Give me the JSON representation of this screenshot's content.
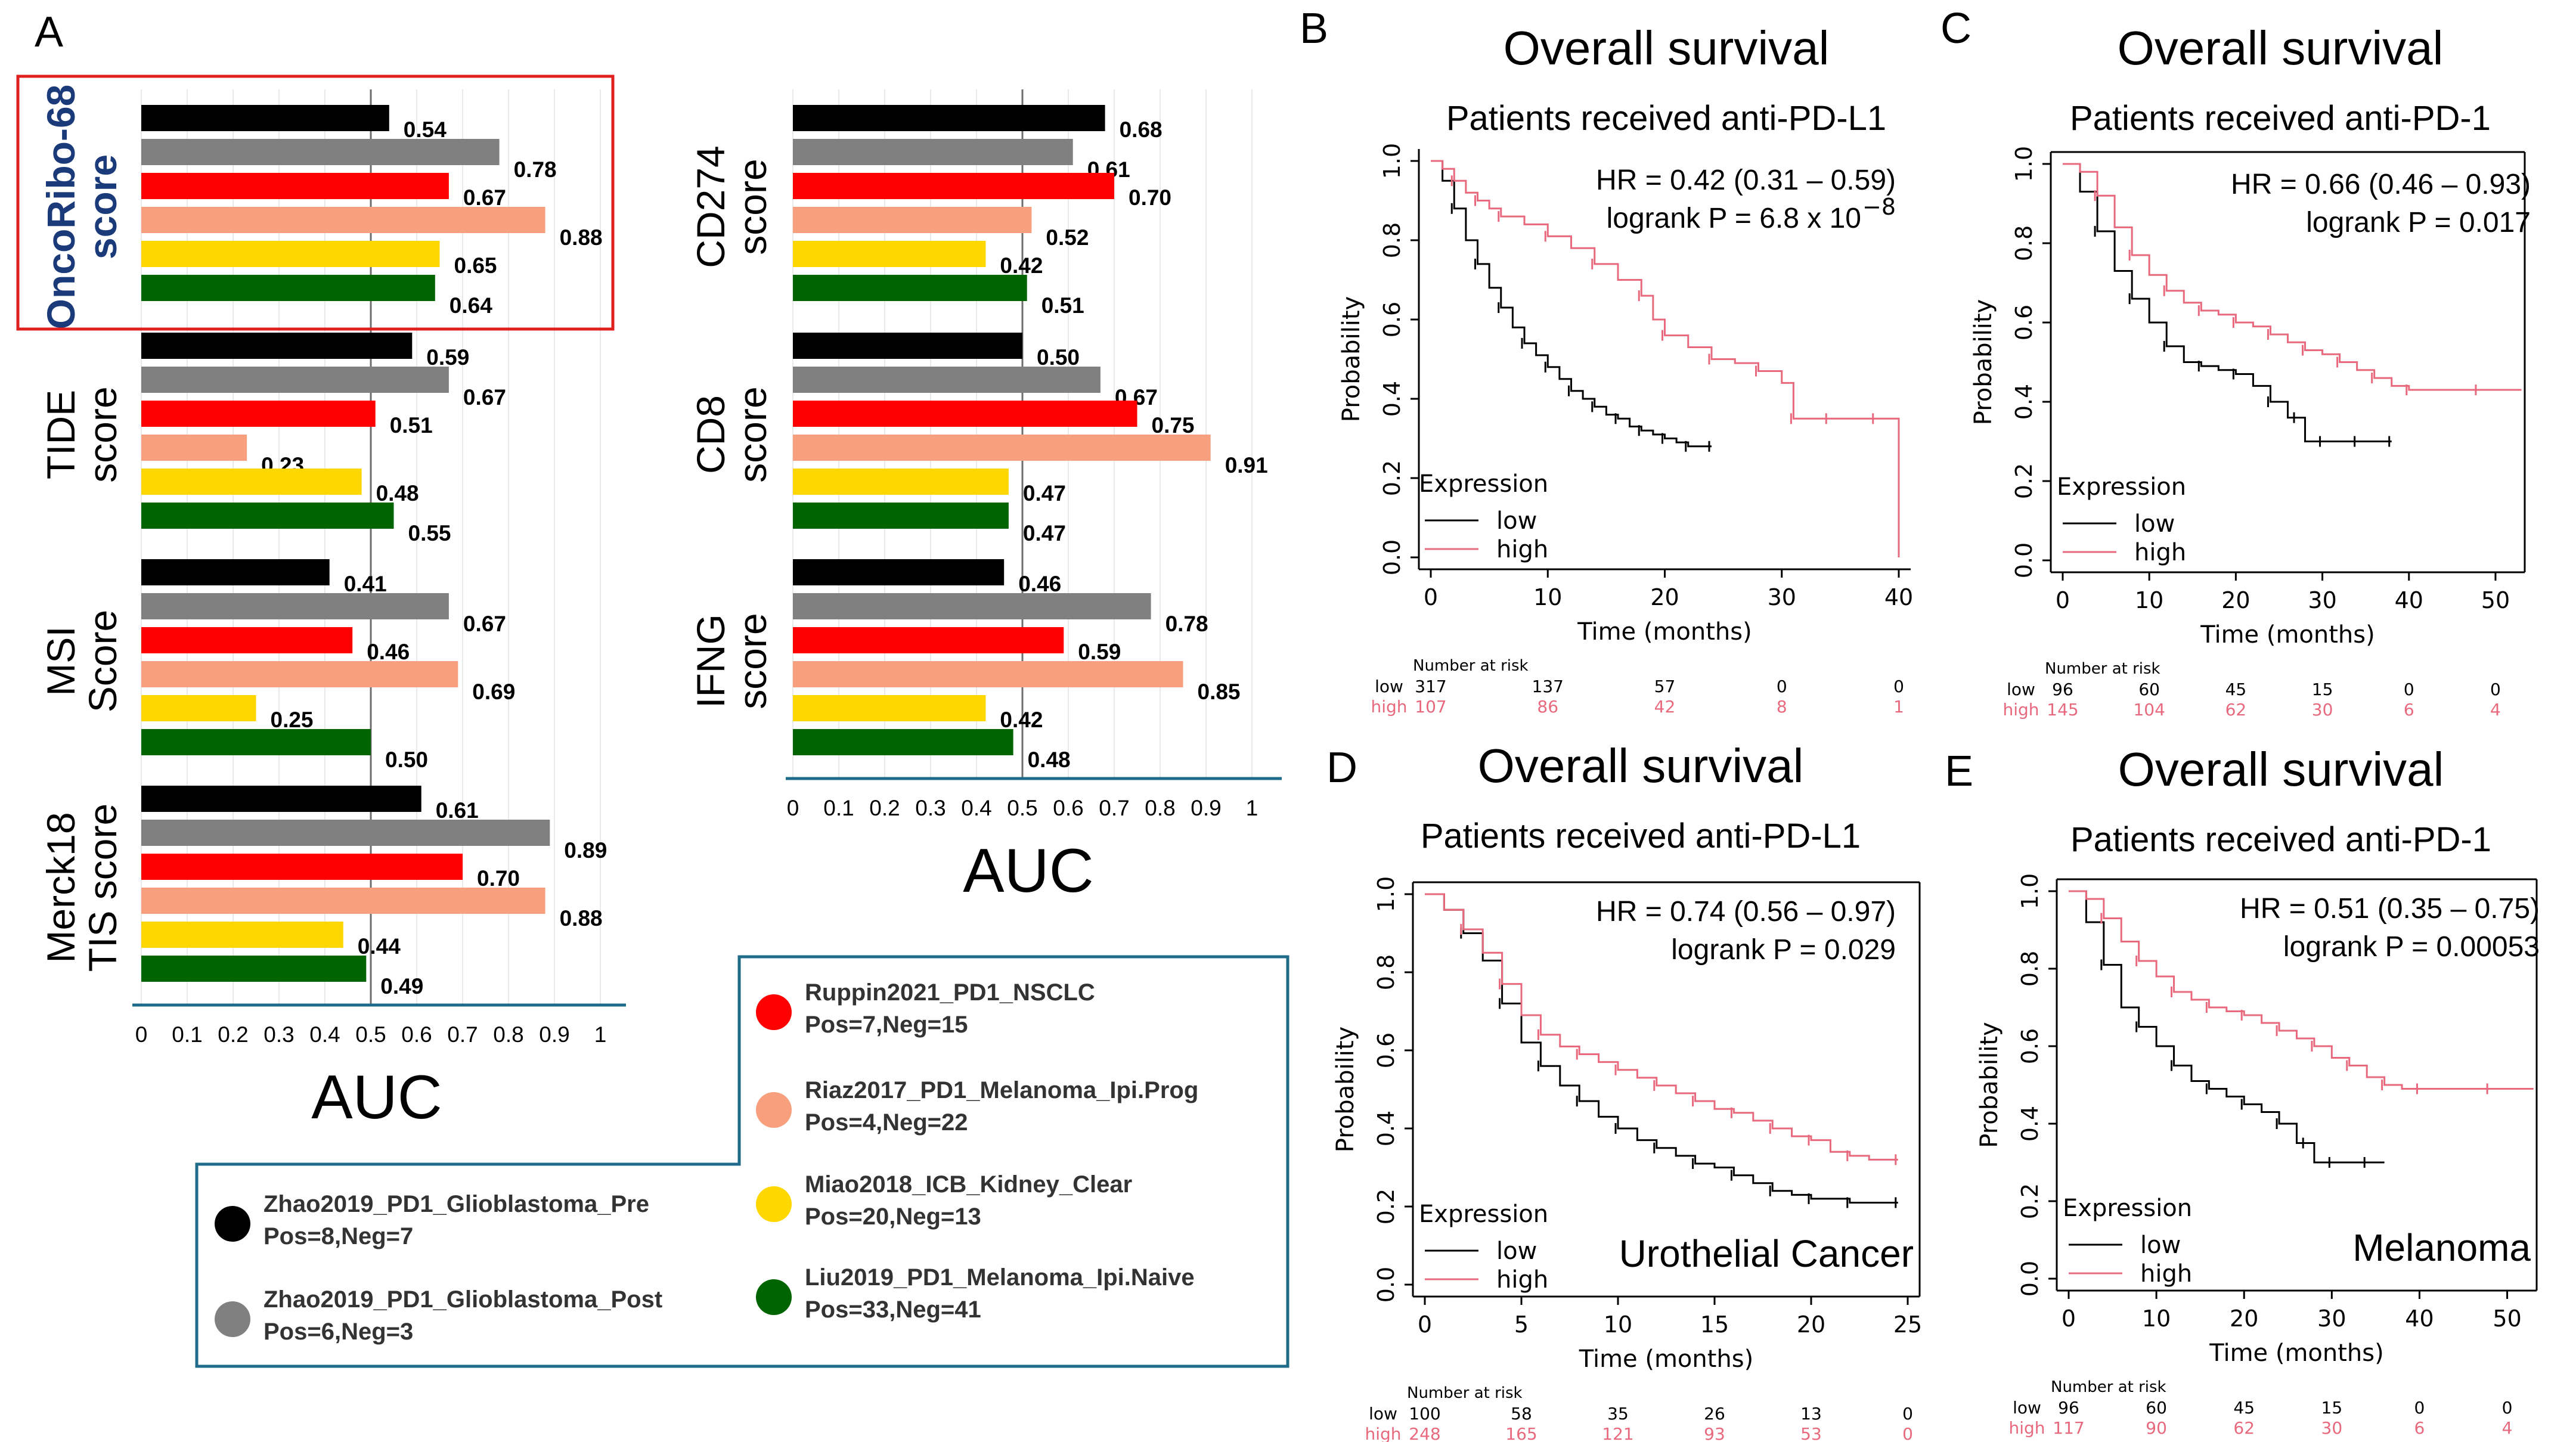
{
  "panel_a": {
    "letter": "A",
    "axis_title": "AUC",
    "x_ticks": [
      "0",
      "0.1",
      "0.2",
      "0.3",
      "0.4",
      "0.5",
      "0.6",
      "0.7",
      "0.8",
      "0.9",
      "1"
    ],
    "legend": [
      {
        "name": "Zhao2019_PD1_Glioblastoma_Pre",
        "counts": "Pos=8,Neg=7",
        "color": "#000000"
      },
      {
        "name": "Zhao2019_PD1_Glioblastoma_Post",
        "counts": "Pos=6,Neg=3",
        "color": "#808080"
      },
      {
        "name": "Ruppin2021_PD1_NSCLC",
        "counts": "Pos=7,Neg=15",
        "color": "#ff0000"
      },
      {
        "name": "Riaz2017_PD1_Melanoma_Ipi.Prog",
        "counts": "Pos=4,Neg=22",
        "color": "#f8a07e"
      },
      {
        "name": "Miao2018_ICB_Kidney_Clear",
        "counts": "Pos=20,Neg=13",
        "color": "#ffd700"
      },
      {
        "name": "Liu2019_PD1_Melanoma_Ipi.Naive",
        "counts": "Pos=33,Neg=41",
        "color": "#006400"
      }
    ],
    "highlight_color": "#e0201f",
    "highlight_label_color": "#1a3a7a"
  },
  "chart_data": [
    {
      "type": "bar",
      "orientation": "horizontal",
      "title": "",
      "xlabel": "AUC",
      "xlim": [
        0,
        1
      ],
      "reference_line": 0.5,
      "series_names": [
        "Zhao2019_PD1_Glioblastoma_Pre",
        "Zhao2019_PD1_Glioblastoma_Post",
        "Ruppin2021_PD1_NSCLC",
        "Riaz2017_PD1_Melanoma_Ipi.Prog",
        "Miao2018_ICB_Kidney_Clear",
        "Liu2019_PD1_Melanoma_Ipi.Naive"
      ],
      "groups": [
        {
          "label_lines": [
            "OncoRibo-68",
            "score"
          ],
          "values": [
            0.54,
            0.78,
            0.67,
            0.88,
            0.65,
            0.64
          ],
          "labels": [
            "0.54",
            "0.78",
            "0.67",
            "0.88",
            "0.65",
            "0.64"
          ],
          "highlight": true
        },
        {
          "label_lines": [
            "TIDE",
            "score"
          ],
          "values": [
            0.59,
            0.67,
            0.51,
            0.23,
            0.48,
            0.55
          ],
          "labels": [
            "0.59",
            "0.67",
            "0.51",
            "0.23",
            "0.48",
            "0.55"
          ]
        },
        {
          "label_lines": [
            "MSI",
            "Score"
          ],
          "values": [
            0.41,
            0.67,
            0.46,
            0.69,
            0.25,
            0.5
          ],
          "labels": [
            "0.41",
            "0.67",
            "0.46",
            "0.69",
            "0.25",
            "0.50"
          ]
        },
        {
          "label_lines": [
            "Merck18",
            "TIS score"
          ],
          "values": [
            0.61,
            0.89,
            0.7,
            0.88,
            0.44,
            0.49
          ],
          "labels": [
            "0.61",
            "0.89",
            "0.70",
            "0.88",
            "0.44",
            "0.49"
          ]
        }
      ]
    },
    {
      "type": "bar",
      "orientation": "horizontal",
      "title": "",
      "xlabel": "AUC",
      "xlim": [
        0,
        1
      ],
      "reference_line": 0.5,
      "series_names": [
        "Zhao2019_PD1_Glioblastoma_Pre",
        "Zhao2019_PD1_Glioblastoma_Post",
        "Ruppin2021_PD1_NSCLC",
        "Riaz2017_PD1_Melanoma_Ipi.Prog",
        "Miao2018_ICB_Kidney_Clear",
        "Liu2019_PD1_Melanoma_Ipi.Naive"
      ],
      "groups": [
        {
          "label_lines": [
            "CD274",
            "score"
          ],
          "values": [
            0.68,
            0.61,
            0.7,
            0.52,
            0.42,
            0.51
          ],
          "labels": [
            "0.68",
            "0.61",
            "0.70",
            "0.52",
            "0.42",
            "0.51"
          ]
        },
        {
          "label_lines": [
            "CD8",
            "score"
          ],
          "values": [
            0.5,
            0.67,
            0.75,
            0.91,
            0.47,
            0.47
          ],
          "labels": [
            "0.50",
            "0.67",
            "0.75",
            "0.91",
            "0.47",
            "0.47"
          ]
        },
        {
          "label_lines": [
            "IFNG",
            "score"
          ],
          "values": [
            0.46,
            0.78,
            0.59,
            0.85,
            0.42,
            0.48
          ],
          "labels": [
            "0.46",
            "0.78",
            "0.59",
            "0.85",
            "0.42",
            "0.48"
          ]
        }
      ]
    },
    {
      "type": "line",
      "subtype": "kaplan-meier",
      "letter": "B",
      "title": "Overall survival",
      "subtitle": "Patients received anti-PD-L1",
      "xlabel": "Time (months)",
      "ylabel": "Probability",
      "xlim": [
        0,
        40
      ],
      "ylim": [
        0,
        1
      ],
      "x_ticks": [
        "0",
        "10",
        "20",
        "30",
        "40"
      ],
      "y_ticks": [
        "0.0",
        "0.2",
        "0.4",
        "0.6",
        "0.8",
        "1.0"
      ],
      "hr_text": "HR = 0.42 (0.31 – 0.59)",
      "logrank_text": "logrank P = 6.8 x 10",
      "logrank_exp": "−8",
      "legend_title": "Expression",
      "legend_low": "low",
      "legend_high": "high",
      "cancer_label": "",
      "risk_title": "Number at risk",
      "risk_low_label": "low",
      "risk_high_label": "high",
      "risk_times": [
        0,
        10,
        20,
        30,
        40
      ],
      "risk_low": [
        "317",
        "137",
        "57",
        "0",
        "0"
      ],
      "risk_high": [
        "107",
        "86",
        "42",
        "8",
        "1"
      ],
      "series": [
        {
          "name": "low",
          "color": "#000000",
          "end": 24,
          "x": [
            0,
            1,
            2,
            3,
            4,
            5,
            6,
            7,
            8,
            9,
            10,
            11,
            12,
            13,
            14,
            15,
            16,
            17,
            18,
            19,
            20,
            21,
            22,
            23,
            24
          ],
          "y": [
            1.0,
            0.95,
            0.88,
            0.8,
            0.74,
            0.68,
            0.63,
            0.58,
            0.54,
            0.51,
            0.48,
            0.45,
            0.42,
            0.4,
            0.38,
            0.36,
            0.35,
            0.33,
            0.32,
            0.31,
            0.3,
            0.29,
            0.28,
            0.28,
            0.28
          ]
        },
        {
          "name": "high",
          "color": "#e8697d",
          "end": 40,
          "x": [
            0,
            1,
            2,
            3,
            4,
            5,
            6,
            8,
            10,
            12,
            14,
            16,
            18,
            19,
            20,
            22,
            24,
            26,
            28,
            30,
            31,
            32,
            34,
            36,
            38,
            40
          ],
          "y": [
            1.0,
            0.98,
            0.95,
            0.92,
            0.9,
            0.88,
            0.86,
            0.84,
            0.81,
            0.78,
            0.74,
            0.7,
            0.66,
            0.6,
            0.56,
            0.53,
            0.5,
            0.49,
            0.47,
            0.44,
            0.35,
            0.35,
            0.35,
            0.35,
            0.35,
            0.0
          ]
        }
      ]
    },
    {
      "type": "line",
      "subtype": "kaplan-meier",
      "letter": "C",
      "title": "Overall survival",
      "subtitle": "Patients received anti-PD-1",
      "xlabel": "Time (months)",
      "ylabel": "Probability",
      "xlim": [
        0,
        52
      ],
      "ylim": [
        0,
        1
      ],
      "x_ticks": [
        "0",
        "10",
        "20",
        "30",
        "40",
        "50"
      ],
      "y_ticks": [
        "0.0",
        "0.2",
        "0.4",
        "0.6",
        "0.8",
        "1.0"
      ],
      "hr_text": "HR = 0.66 (0.46 – 0.93)",
      "logrank_text": "logrank P = 0.017",
      "logrank_exp": "",
      "legend_title": "Expression",
      "legend_low": "low",
      "legend_high": "high",
      "cancer_label": "",
      "risk_title": "Number at risk",
      "risk_low_label": "low",
      "risk_high_label": "high",
      "risk_times": [
        0,
        10,
        20,
        30,
        40,
        50
      ],
      "risk_low": [
        "96",
        "60",
        "45",
        "15",
        "0",
        "0"
      ],
      "risk_high": [
        "145",
        "104",
        "62",
        "30",
        "6",
        "4"
      ],
      "series": [
        {
          "name": "low",
          "color": "#000000",
          "end": 38,
          "x": [
            0,
            2,
            4,
            6,
            8,
            10,
            12,
            14,
            16,
            18,
            20,
            22,
            24,
            26,
            27,
            28,
            30,
            32,
            34,
            36,
            38
          ],
          "y": [
            1.0,
            0.93,
            0.83,
            0.73,
            0.66,
            0.6,
            0.54,
            0.5,
            0.49,
            0.48,
            0.47,
            0.44,
            0.4,
            0.36,
            0.36,
            0.3,
            0.3,
            0.3,
            0.3,
            0.3,
            0.3
          ]
        },
        {
          "name": "high",
          "color": "#e8697d",
          "end": 53,
          "x": [
            0,
            2,
            4,
            6,
            8,
            10,
            12,
            14,
            16,
            18,
            20,
            22,
            24,
            26,
            28,
            30,
            32,
            34,
            36,
            38,
            40,
            44,
            48,
            53
          ],
          "y": [
            1.0,
            0.98,
            0.92,
            0.84,
            0.77,
            0.72,
            0.68,
            0.65,
            0.63,
            0.62,
            0.6,
            0.59,
            0.57,
            0.55,
            0.53,
            0.52,
            0.5,
            0.48,
            0.46,
            0.44,
            0.43,
            0.43,
            0.43,
            0.43
          ]
        }
      ]
    },
    {
      "type": "line",
      "subtype": "kaplan-meier",
      "letter": "D",
      "title": "Overall survival",
      "subtitle": "Patients received anti-PD-L1",
      "xlabel": "Time (months)",
      "ylabel": "Probability",
      "xlim": [
        0,
        25
      ],
      "ylim": [
        0,
        1
      ],
      "x_ticks": [
        "0",
        "5",
        "10",
        "15",
        "20",
        "25"
      ],
      "y_ticks": [
        "0.0",
        "0.2",
        "0.4",
        "0.6",
        "0.8",
        "1.0"
      ],
      "hr_text": "HR = 0.74 (0.56 – 0.97)",
      "logrank_text": "logrank P = 0.029",
      "logrank_exp": "",
      "legend_title": "Expression",
      "legend_low": "low",
      "legend_high": "high",
      "cancer_label": "Urothelial Cancer",
      "risk_title": "Number at risk",
      "risk_low_label": "low",
      "risk_high_label": "high",
      "risk_times": [
        0,
        5,
        10,
        15,
        20,
        25
      ],
      "risk_low": [
        "100",
        "58",
        "35",
        "26",
        "13",
        "0"
      ],
      "risk_high": [
        "248",
        "165",
        "121",
        "93",
        "53",
        "0"
      ],
      "series": [
        {
          "name": "low",
          "color": "#000000",
          "end": 24.5,
          "x": [
            0,
            1,
            2,
            3,
            4,
            5,
            6,
            7,
            8,
            9,
            10,
            11,
            12,
            13,
            14,
            15,
            16,
            17,
            18,
            19,
            20,
            21,
            22,
            23,
            24.5
          ],
          "y": [
            1.0,
            0.96,
            0.9,
            0.83,
            0.72,
            0.62,
            0.56,
            0.51,
            0.47,
            0.43,
            0.4,
            0.37,
            0.35,
            0.33,
            0.31,
            0.3,
            0.28,
            0.26,
            0.24,
            0.23,
            0.22,
            0.22,
            0.21,
            0.21,
            0.21
          ]
        },
        {
          "name": "high",
          "color": "#e8697d",
          "end": 24.5,
          "x": [
            0,
            1,
            2,
            3,
            4,
            5,
            6,
            7,
            8,
            9,
            10,
            11,
            12,
            13,
            14,
            15,
            16,
            17,
            18,
            19,
            20,
            21,
            22,
            23,
            24.5
          ],
          "y": [
            1.0,
            0.96,
            0.91,
            0.85,
            0.77,
            0.69,
            0.64,
            0.61,
            0.59,
            0.57,
            0.55,
            0.53,
            0.51,
            0.49,
            0.47,
            0.45,
            0.44,
            0.42,
            0.4,
            0.38,
            0.37,
            0.34,
            0.33,
            0.32,
            0.32
          ]
        }
      ]
    },
    {
      "type": "line",
      "subtype": "kaplan-meier",
      "letter": "E",
      "title": "Overall survival",
      "subtitle": "Patients received anti-PD-1",
      "xlabel": "Time (months)",
      "ylabel": "Probability",
      "xlim": [
        0,
        52
      ],
      "ylim": [
        0,
        1
      ],
      "x_ticks": [
        "0",
        "10",
        "20",
        "30",
        "40",
        "50"
      ],
      "y_ticks": [
        "0.0",
        "0.2",
        "0.4",
        "0.6",
        "0.8",
        "1.0"
      ],
      "hr_text": "HR = 0.51 (0.35 – 0.75)",
      "logrank_text": "logrank P = 0.00053",
      "logrank_exp": "",
      "legend_title": "Expression",
      "legend_low": "low",
      "legend_high": "high",
      "cancer_label": "Melanoma",
      "risk_title": "Number at risk",
      "risk_low_label": "low",
      "risk_high_label": "high",
      "risk_times": [
        0,
        10,
        20,
        30,
        40,
        50
      ],
      "risk_low": [
        "96",
        "60",
        "45",
        "15",
        "0",
        "0"
      ],
      "risk_high": [
        "117",
        "90",
        "62",
        "30",
        "6",
        "4"
      ],
      "series": [
        {
          "name": "low",
          "color": "#000000",
          "end": 36,
          "x": [
            0,
            2,
            4,
            6,
            8,
            10,
            12,
            14,
            16,
            18,
            20,
            22,
            24,
            26,
            27,
            28,
            30,
            32,
            34,
            36
          ],
          "y": [
            1.0,
            0.92,
            0.81,
            0.7,
            0.65,
            0.6,
            0.55,
            0.51,
            0.49,
            0.47,
            0.45,
            0.43,
            0.4,
            0.35,
            0.35,
            0.3,
            0.3,
            0.3,
            0.3,
            0.3
          ]
        },
        {
          "name": "high",
          "color": "#e8697d",
          "end": 53,
          "x": [
            0,
            2,
            4,
            6,
            8,
            10,
            12,
            14,
            16,
            18,
            20,
            22,
            24,
            26,
            28,
            30,
            32,
            34,
            36,
            38,
            40,
            44,
            48,
            53
          ],
          "y": [
            1.0,
            0.98,
            0.93,
            0.87,
            0.82,
            0.78,
            0.74,
            0.72,
            0.7,
            0.69,
            0.68,
            0.66,
            0.64,
            0.62,
            0.6,
            0.57,
            0.55,
            0.52,
            0.5,
            0.49,
            0.49,
            0.49,
            0.49,
            0.49
          ]
        }
      ]
    }
  ]
}
